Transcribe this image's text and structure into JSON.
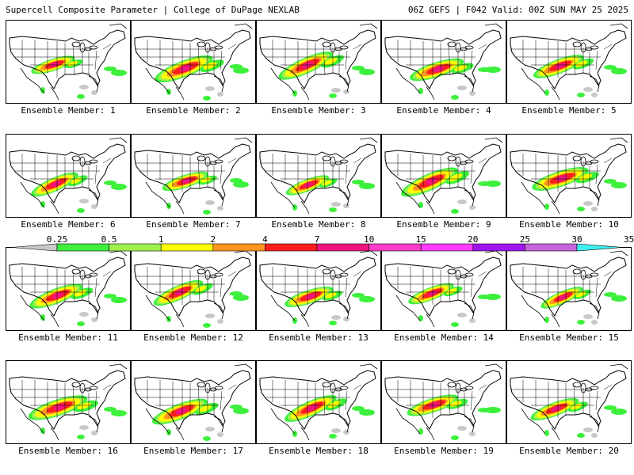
{
  "header": {
    "title": "Supercell Composite Parameter | College of DuPage NEXLAB",
    "run_info": "06Z GEFS | F042 Valid: 00Z SUN MAY 25 2025"
  },
  "members": [
    {
      "label": "Ensemble Member: 1"
    },
    {
      "label": "Ensemble Member: 2"
    },
    {
      "label": "Ensemble Member: 3"
    },
    {
      "label": "Ensemble Member: 4"
    },
    {
      "label": "Ensemble Member: 5"
    },
    {
      "label": "Ensemble Member: 6"
    },
    {
      "label": "Ensemble Member: 7"
    },
    {
      "label": "Ensemble Member: 8"
    },
    {
      "label": "Ensemble Member: 9"
    },
    {
      "label": "Ensemble Member: 10"
    },
    {
      "label": "Ensemble Member: 11"
    },
    {
      "label": "Ensemble Member: 12"
    },
    {
      "label": "Ensemble Member: 13"
    },
    {
      "label": "Ensemble Member: 14"
    },
    {
      "label": "Ensemble Member: 15"
    },
    {
      "label": "Ensemble Member: 16"
    },
    {
      "label": "Ensemble Member: 17"
    },
    {
      "label": "Ensemble Member: 18"
    },
    {
      "label": "Ensemble Member: 19"
    },
    {
      "label": "Ensemble Member: 20"
    }
  ],
  "colorbar": {
    "ticks": [
      "0.25",
      "0.5",
      "1",
      "2",
      "4",
      "7",
      "10",
      "15",
      "20",
      "25",
      "30",
      "35"
    ],
    "colors": [
      "#c8c8c8",
      "#3cf03c",
      "#a0f050",
      "#ffff00",
      "#ff9620",
      "#ff1e1e",
      "#f01480",
      "#ff3cc8",
      "#ff3cff",
      "#a014f0",
      "#c864dc",
      "#40f0f0"
    ]
  },
  "colors": {
    "low": "#c8c8c8",
    "green": "#3cf03c",
    "lime": "#a0f050",
    "yellow": "#ffff00",
    "orange": "#ff9620",
    "red": "#ff1e1e",
    "magenta": "#f01480"
  }
}
